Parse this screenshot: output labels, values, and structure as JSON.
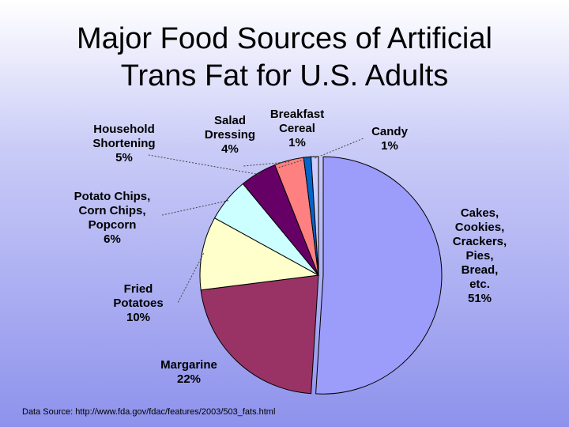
{
  "slide": {
    "title_line1": "Major Food Sources of Artificial",
    "title_line2": "Trans Fat for U.S. Adults",
    "source": "Data Source: http://www.fda.gov/fdac/features/2003/503_fats.html"
  },
  "chart_data": {
    "type": "pie",
    "title": "Major Food Sources of Artificial Trans Fat for U.S. Adults",
    "unit": "%",
    "legend": "none",
    "start_angle_deg": 0,
    "direction": "clockwise",
    "slices": [
      {
        "label_lines": [
          "Cakes,",
          "Cookies,",
          "Crackers,",
          "Pies,",
          "Bread,",
          "etc.",
          "51%"
        ],
        "value": 51,
        "color": "#9c9cfb"
      },
      {
        "label_lines": [
          "Margarine",
          "22%"
        ],
        "value": 22,
        "color": "#993366"
      },
      {
        "label_lines": [
          "Fried",
          "Potatoes",
          "10%"
        ],
        "value": 10,
        "color": "#ffffcc"
      },
      {
        "label_lines": [
          "Potato Chips,",
          "Corn Chips,",
          "Popcorn",
          "6%"
        ],
        "value": 6,
        "color": "#ccffff"
      },
      {
        "label_lines": [
          "Household",
          "Shortening",
          "5%"
        ],
        "value": 5,
        "color": "#660066"
      },
      {
        "label_lines": [
          "Salad",
          "Dressing",
          "4%"
        ],
        "value": 4,
        "color": "#ff8080"
      },
      {
        "label_lines": [
          "Breakfast",
          "Cereal",
          "1%"
        ],
        "value": 1,
        "color": "#0066cc"
      },
      {
        "label_lines": [
          "Candy",
          "1%"
        ],
        "value": 1,
        "color": "#ccccff"
      }
    ]
  }
}
